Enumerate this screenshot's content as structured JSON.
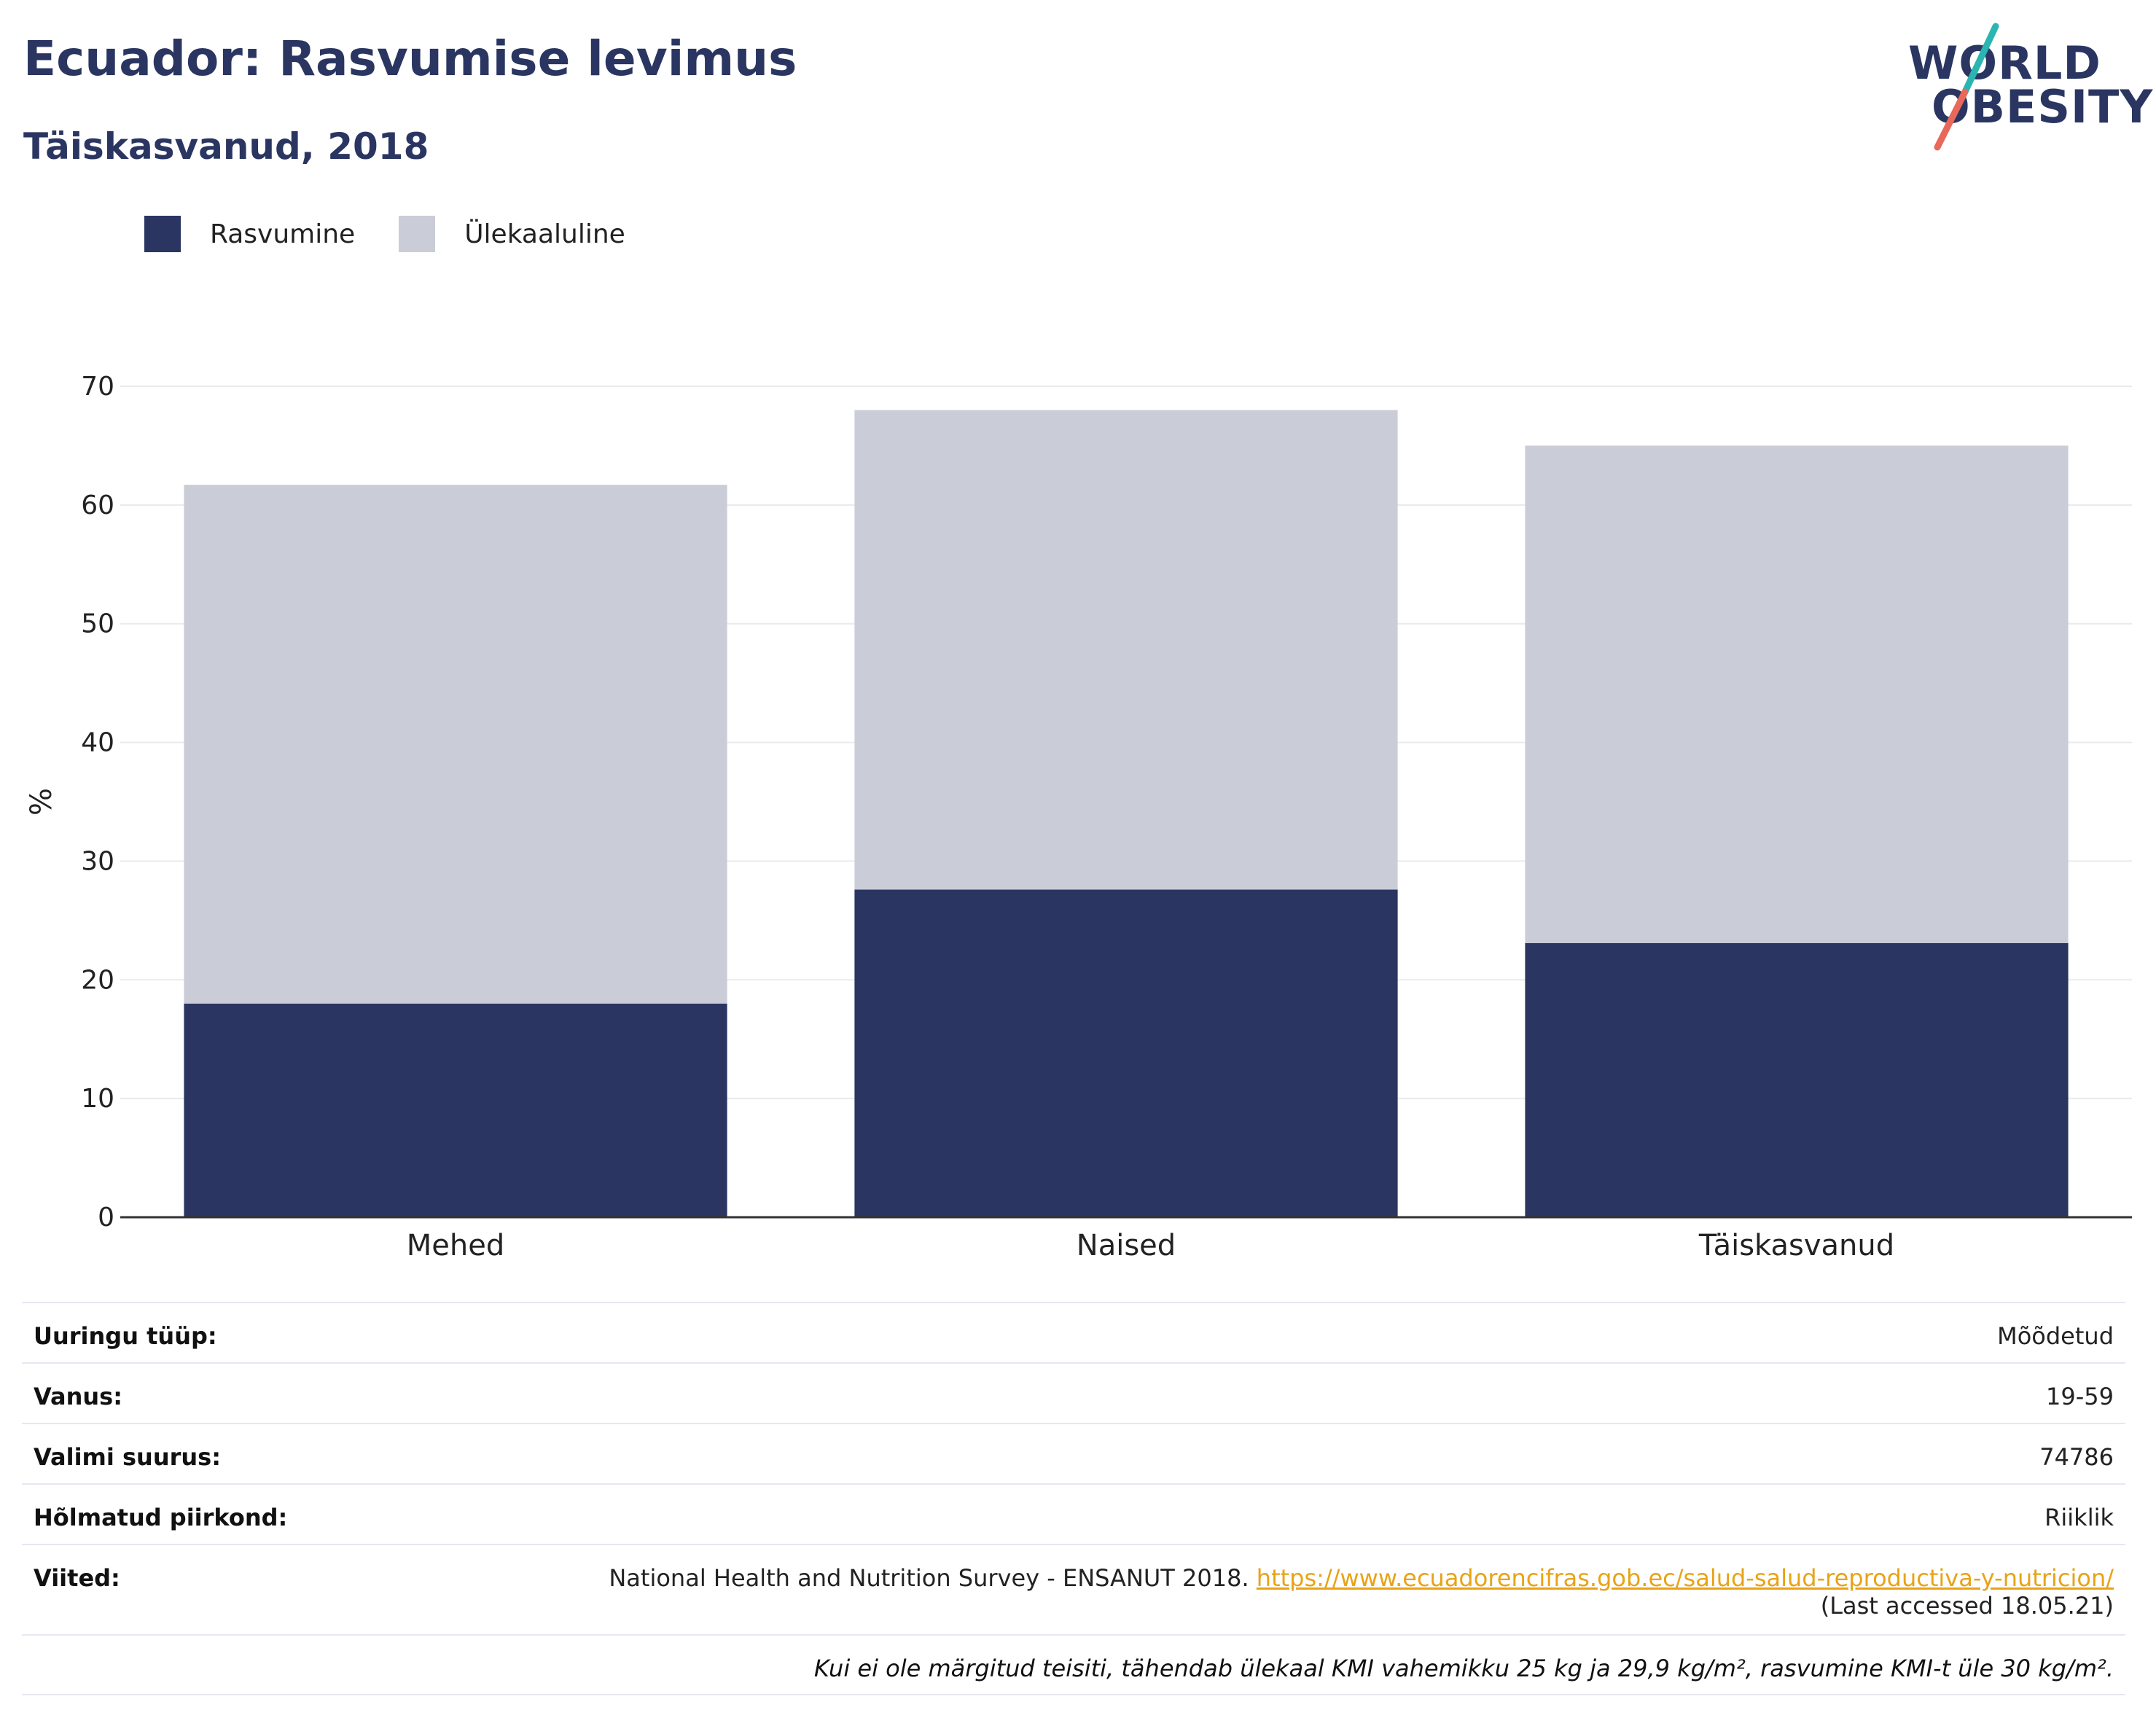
{
  "header": {
    "title": "Ecuador: Rasvumise levimus",
    "subtitle": "Täiskasvanud, 2018"
  },
  "logo": {
    "line1": "WORLD",
    "line2": "OBESITY",
    "colors": {
      "text": "#2a3661",
      "slash_top": "#2bb5b0",
      "slash_bottom": "#e8685a"
    }
  },
  "chart_data": {
    "type": "bar",
    "stacked": true,
    "categories": [
      "Mehed",
      "Naised",
      "Täiskasvanud"
    ],
    "series": [
      {
        "name": "Rasvumine",
        "values": [
          18.0,
          27.6,
          23.1
        ],
        "color": "#2a3661"
      },
      {
        "name": "Ülekaaluline",
        "values": [
          43.7,
          40.4,
          41.9
        ],
        "color": "#cacdd8"
      }
    ],
    "xlabel": "",
    "ylabel": "%",
    "ylim": [
      0,
      70
    ],
    "yticks": [
      0,
      10,
      20,
      30,
      40,
      50,
      60,
      70
    ],
    "grid": true,
    "legend_position": "top-left"
  },
  "info": {
    "rows": [
      {
        "key": "Uuringu tüüp:",
        "value": "Mõõdetud"
      },
      {
        "key": "Vanus:",
        "value": "19-59"
      },
      {
        "key": "Valimi suurus:",
        "value": "74786"
      },
      {
        "key": "Hõlmatud piirkond:",
        "value": "Riiklik"
      }
    ],
    "references": {
      "key": "Viited:",
      "text": "National Health and Nutrition Survey - ENSANUT 2018.",
      "link": "https://www.ecuadorencifras.gob.ec/salud-salud-reproductiva-y-nutricion/",
      "accessed": "(Last accessed 18.05.21)"
    },
    "note": "Kui ei ole märgitud teisiti, tähendab ülekaal KMI vahemikku 25 kg ja 29,9 kg/m², rasvumine KMI-t üle 30 kg/m²."
  }
}
